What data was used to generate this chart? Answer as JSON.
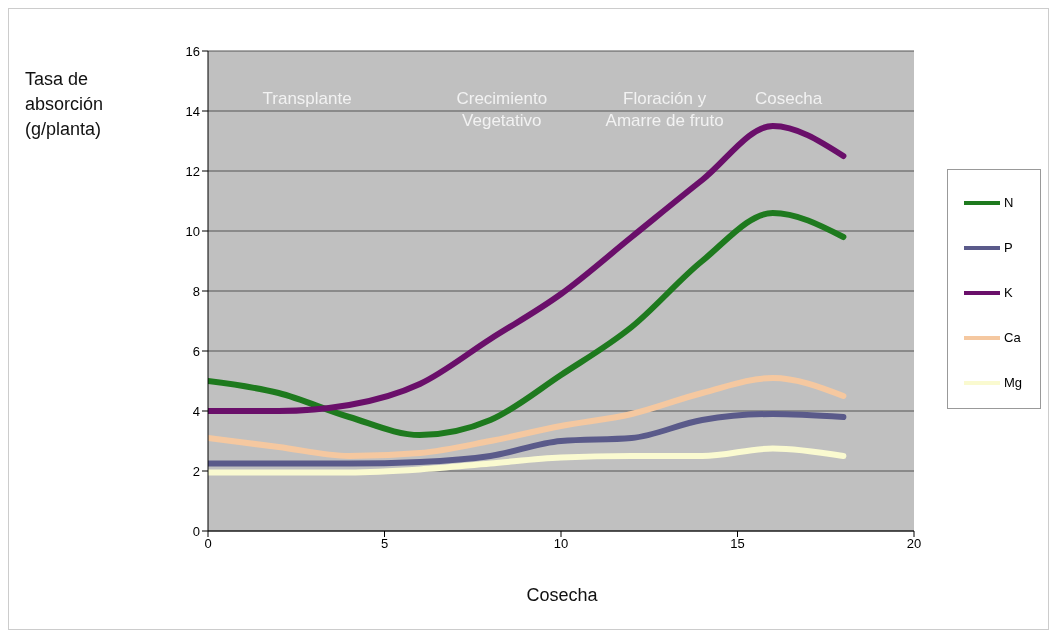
{
  "chart_data": {
    "type": "line",
    "xlabel": "Cosecha",
    "ylabel": "Tasa de\nabsorción\n(g/planta)",
    "x": [
      0,
      2,
      4,
      6,
      8,
      10,
      12,
      14,
      16,
      18
    ],
    "series": [
      {
        "name": "N",
        "color": "#1e7a1e",
        "values": [
          5.0,
          4.6,
          3.8,
          3.2,
          3.7,
          5.2,
          6.8,
          9.0,
          10.6,
          9.8
        ]
      },
      {
        "name": "P",
        "color": "#5a5a8a",
        "values": [
          2.25,
          2.25,
          2.25,
          2.3,
          2.5,
          3.0,
          3.1,
          3.7,
          3.9,
          3.8
        ]
      },
      {
        "name": "K",
        "color": "#6a0f6a",
        "values": [
          4.0,
          4.0,
          4.2,
          4.9,
          6.4,
          7.9,
          9.8,
          11.7,
          13.5,
          12.5
        ]
      },
      {
        "name": "Ca",
        "color": "#f5c8a0",
        "values": [
          3.1,
          2.8,
          2.5,
          2.6,
          3.0,
          3.5,
          3.9,
          4.6,
          5.1,
          4.5
        ]
      },
      {
        "name": "Mg",
        "color": "#fafad0",
        "values": [
          1.95,
          1.95,
          1.95,
          2.05,
          2.25,
          2.45,
          2.5,
          2.5,
          2.75,
          2.5
        ]
      }
    ],
    "annotations": [
      "Transplante",
      "Crecimiento\nVegetativo",
      "Floración y\nAmarre de fruto",
      "Cosecha"
    ],
    "xlim": [
      0,
      20
    ],
    "xticks": [
      0,
      5,
      10,
      15,
      20
    ],
    "ylim": [
      0,
      16
    ],
    "yticks": [
      0,
      2,
      4,
      6,
      8,
      10,
      12,
      14,
      16
    ],
    "grid": "y",
    "legend": "right",
    "marker": "none",
    "line_style": "solid"
  }
}
